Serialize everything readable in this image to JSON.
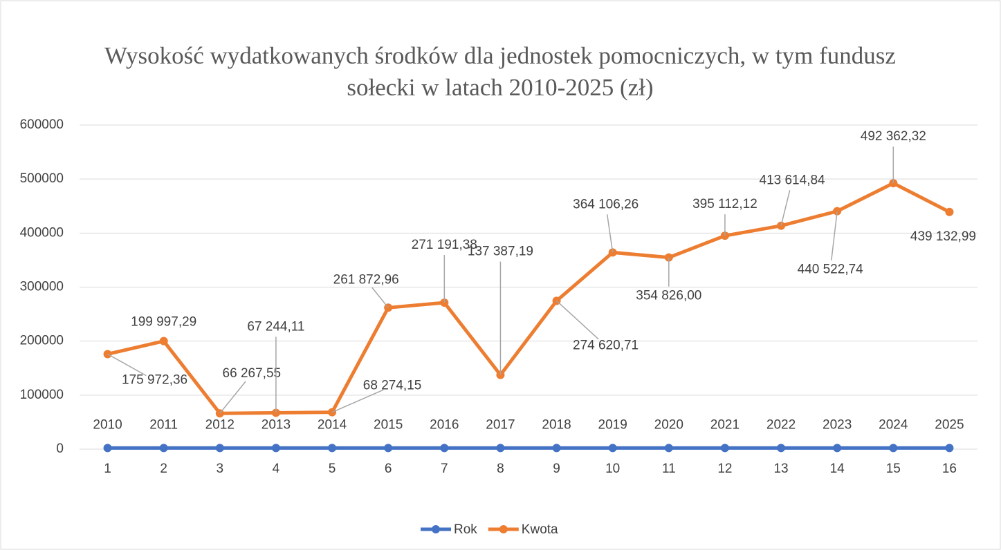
{
  "chart_data": {
    "type": "line",
    "title": "Wysokość wydatkowanych środków dla jednostek pomocniczych, w tym fundusz sołecki w latach 2010-2025 (zł)",
    "categories": [
      "1",
      "2",
      "3",
      "4",
      "5",
      "6",
      "7",
      "8",
      "9",
      "10",
      "11",
      "12",
      "13",
      "14",
      "15",
      "16"
    ],
    "series": [
      {
        "name": "Rok",
        "color": "#4472c4",
        "values": [
          2010,
          2011,
          2012,
          2013,
          2014,
          2015,
          2016,
          2017,
          2018,
          2019,
          2020,
          2021,
          2022,
          2023,
          2024,
          2025
        ]
      },
      {
        "name": "Kwota",
        "color": "#ed7d31",
        "values": [
          175972.36,
          199997.29,
          66267.55,
          67244.11,
          68274.15,
          261872.96,
          271191.38,
          137387.19,
          274620.71,
          364106.26,
          354826.0,
          395112.12,
          413614.84,
          440522.74,
          492362.32,
          439132.99
        ],
        "value_labels": [
          "175 972,36",
          "199 997,29",
          "66 267,55",
          "67 244,11",
          "68 274,15",
          "261 872,96",
          "271 191,38",
          "137 387,19",
          "274 620,71",
          "364 106,26",
          "354 826,00",
          "395 112,12",
          "413 614,84",
          "440 522,74",
          "492 362,32",
          "439 132,99"
        ]
      }
    ],
    "ylim": [
      0,
      600000
    ],
    "yticks": [
      0,
      100000,
      200000,
      300000,
      400000,
      500000,
      600000
    ],
    "grid": true,
    "legend": "bottom"
  }
}
